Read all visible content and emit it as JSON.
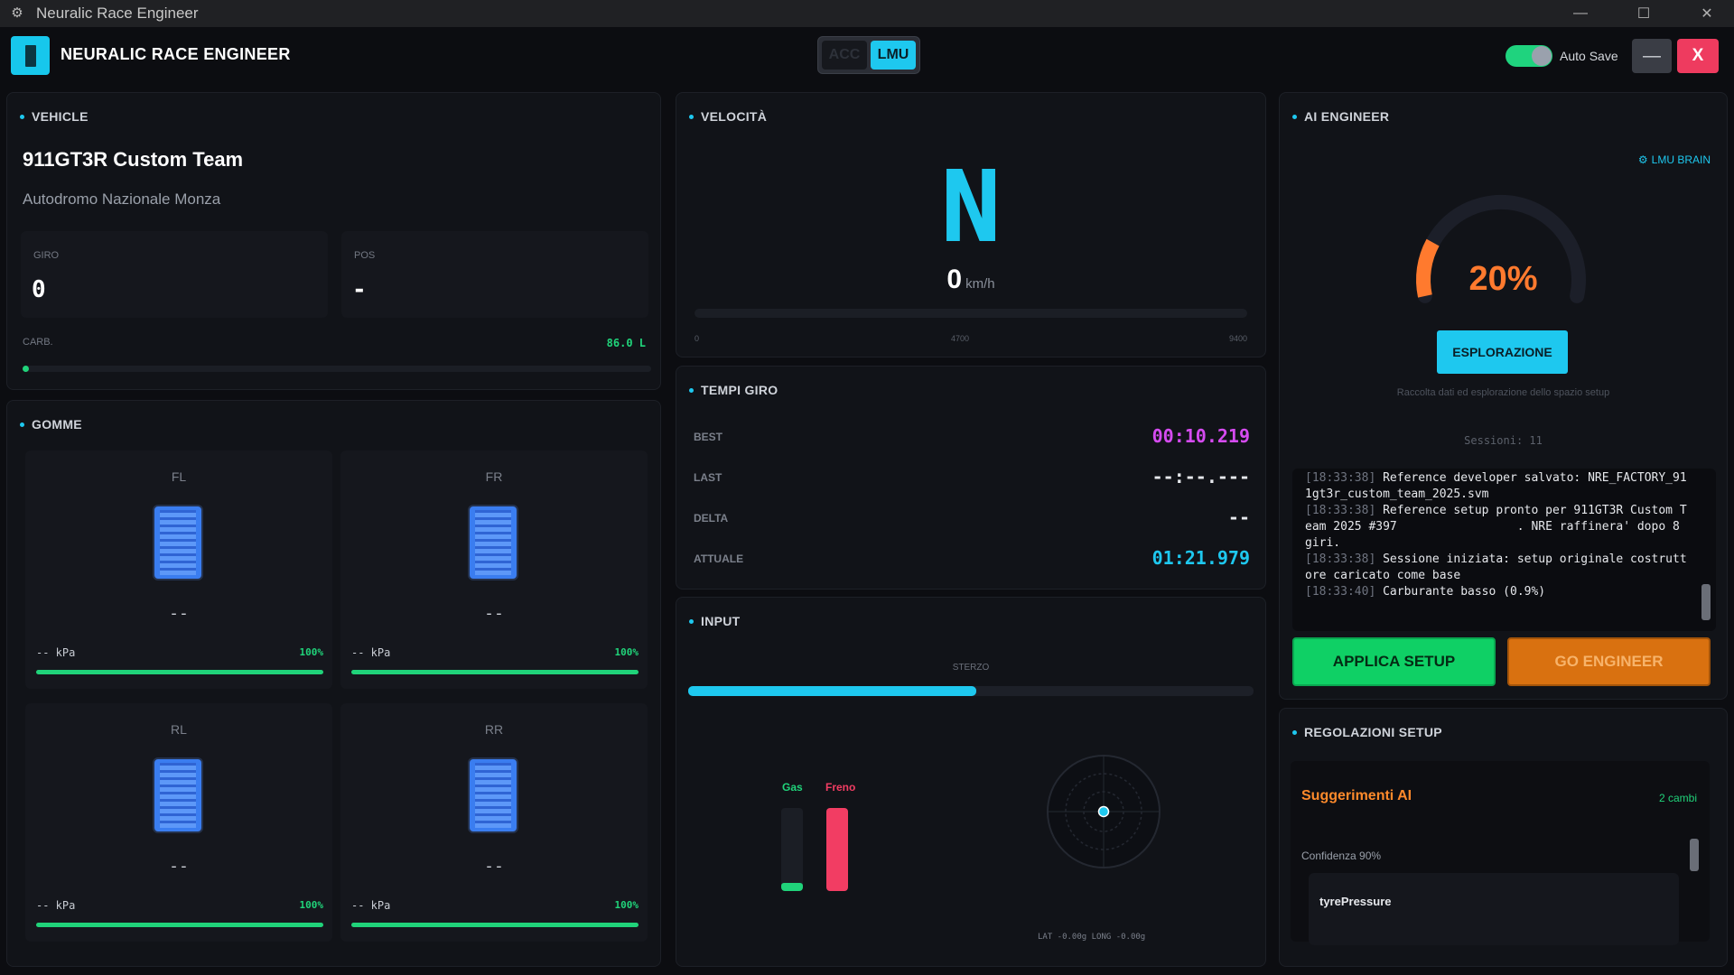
{
  "window": {
    "title": "Neuralic Race Engineer"
  },
  "header": {
    "app_title": "NEURALIC RACE ENGINEER",
    "sim_options": [
      "ACC",
      "LMU"
    ],
    "sim_selected": "LMU",
    "autosave_label": "Auto Save",
    "autosave_on": true,
    "minimize_label": "—",
    "close_label": "X"
  },
  "vehicle": {
    "title": "VEHICLE",
    "name": "911GT3R Custom Team",
    "track": "Autodromo Nazionale Monza",
    "lap_label": "GIRO",
    "lap_value": "0",
    "pos_label": "POS",
    "pos_value": "-",
    "fuel_label": "CARB.",
    "fuel_value": "86.0 L",
    "fuel_fraction": 0.01
  },
  "tyres": {
    "title": "GOMME",
    "items": [
      {
        "pos": "FL",
        "temp": "--",
        "pressure": "-- kPa",
        "wear": "100%",
        "wear_fraction": 1.0
      },
      {
        "pos": "FR",
        "temp": "--",
        "pressure": "-- kPa",
        "wear": "100%",
        "wear_fraction": 1.0
      },
      {
        "pos": "RL",
        "temp": "--",
        "pressure": "-- kPa",
        "wear": "100%",
        "wear_fraction": 1.0
      },
      {
        "pos": "RR",
        "temp": "--",
        "pressure": "-- kPa",
        "wear": "100%",
        "wear_fraction": 1.0
      }
    ]
  },
  "velocity": {
    "title": "VELOCITÀ",
    "gear": "N",
    "speed": "0",
    "unit": "km/h",
    "rpm_ticks": [
      "0",
      "4700",
      "9400"
    ],
    "rpm_fraction": 0.0
  },
  "laptimes": {
    "title": "TEMPI GIRO",
    "rows": [
      {
        "label": "BEST",
        "value": "00:10.219",
        "color": "#d54bf0"
      },
      {
        "label": "LAST",
        "value": "--:--.---",
        "color": "#e6e8ec"
      },
      {
        "label": "DELTA",
        "value": "--",
        "color": "#e6e8ec"
      },
      {
        "label": "ATTUALE",
        "value": "01:21.979",
        "color": "#1ec8ef"
      }
    ]
  },
  "input": {
    "title": "INPUT",
    "steer_label": "STERZO",
    "steer_fraction": 0.51,
    "gas_label": "Gas",
    "gas_fraction": 0.1,
    "brake_label": "Freno",
    "brake_fraction": 1.0,
    "gforce_readout": "LAT -0.00g  LONG -0.00g"
  },
  "ai": {
    "title": "AI ENGINEER",
    "brain_label": "LMU BRAIN",
    "progress_text": "20%",
    "progress_fraction": 0.2,
    "mode": "ESPLORAZIONE",
    "mode_desc": "Raccolta dati ed esplorazione dello spazio setup",
    "sessions": "Sessioni: 11",
    "log": [
      {
        "ts": "[18:33:38]",
        "msg": "Reference developer salvato: NRE_FACTORY_911gt3r_custom_team_2025.svm"
      },
      {
        "ts": "[18:33:38]",
        "msg": "Reference setup pronto per 911GT3R Custom Team 2025 #397                 . NRE raffinera' dopo 8 giri."
      },
      {
        "ts": "[18:33:38]",
        "msg": "Sessione iniziata: setup originale costruttore caricato come base"
      },
      {
        "ts": "[18:33:40]",
        "msg": "Carburante basso (0.9%)"
      }
    ],
    "apply_label": "APPLICA SETUP",
    "go_label": "GO ENGINEER"
  },
  "setup": {
    "title": "REGOLAZIONI SETUP",
    "suggestions_title": "Suggerimenti AI",
    "changes": "2 cambi",
    "confidence": "Confidenza 90%",
    "item_name": "tyrePressure"
  },
  "colors": {
    "accent": "#1ec8ef",
    "green": "#20d37a",
    "orange": "#ff7a2e",
    "brake": "#f23d63"
  }
}
